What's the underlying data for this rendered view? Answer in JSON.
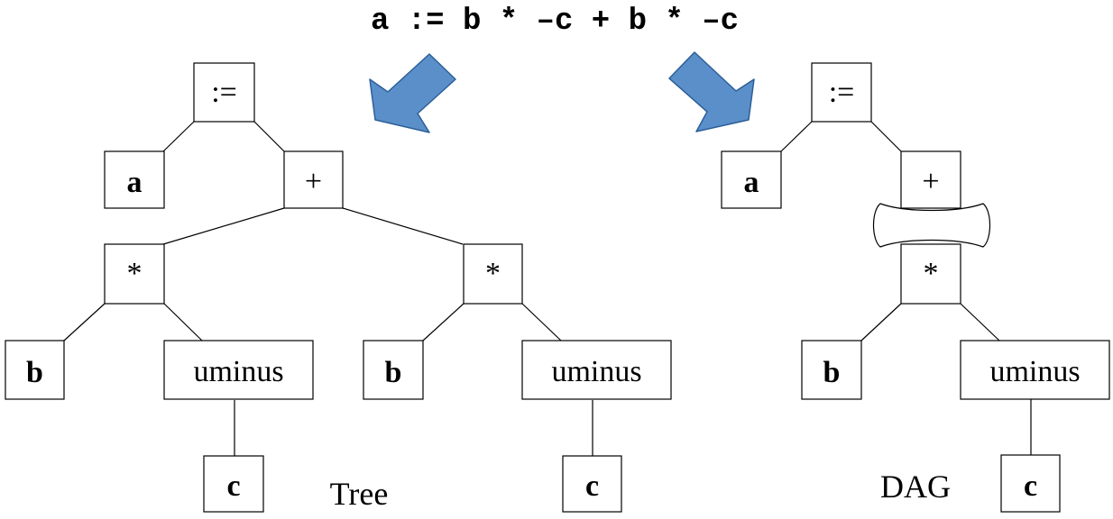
{
  "expression": "a := b * –c + b * –c",
  "tree": {
    "label": "Tree",
    "nodes": {
      "assign": ":=",
      "a": "a",
      "plus": "+",
      "mul_left": "*",
      "mul_right": "*",
      "b_left": "b",
      "uminus_left": "uminus",
      "b_right": "b",
      "uminus_right": "uminus",
      "c_left": "c",
      "c_right": "c"
    }
  },
  "dag": {
    "label": "DAG",
    "nodes": {
      "assign": ":=",
      "a": "a",
      "plus": "+",
      "mul": "*",
      "b": "b",
      "uminus": "uminus",
      "c": "c"
    }
  },
  "colors": {
    "arrow_fill": "#5b8fca",
    "arrow_stroke": "#2c5f98",
    "ink": "#000000"
  },
  "icons": {
    "left_arrow": "down-left-arrow-icon",
    "right_arrow": "down-right-arrow-icon",
    "dag_link": "bone-connector-icon"
  }
}
